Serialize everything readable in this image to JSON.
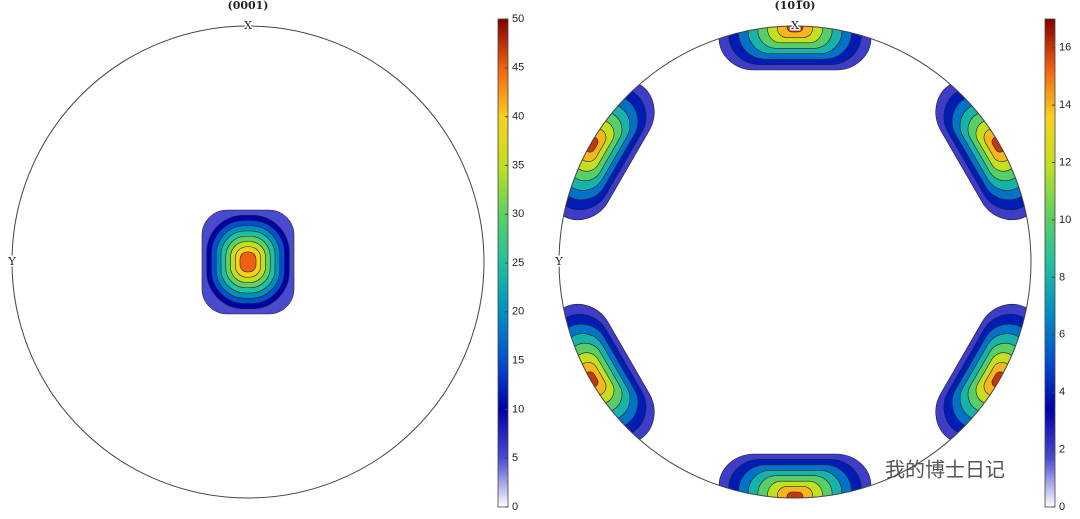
{
  "chart_data": [
    {
      "type": "pole-figure",
      "title": "(0001)",
      "x_label": "X",
      "y_label": "Y",
      "clim": [
        0,
        50
      ],
      "cticks": [
        0,
        5,
        10,
        15,
        20,
        25,
        30,
        35,
        40,
        45,
        50
      ],
      "levels": [
        5,
        10,
        15,
        20,
        25,
        30,
        35,
        40,
        45
      ],
      "colormap": [
        "#ffffff",
        "#4a4ad0",
        "#0000a8",
        "#0050d0",
        "#0090c0",
        "#20c0a0",
        "#60d060",
        "#c0e020",
        "#f8d020",
        "#f06010",
        "#800000"
      ]
    },
    {
      "type": "pole-figure",
      "title": "(101̅0)",
      "x_label": "X",
      "y_label": "Y",
      "clim": [
        0,
        17
      ],
      "cticks": [
        0,
        2,
        4,
        6,
        8,
        10,
        12,
        14,
        16
      ],
      "levels": [
        2,
        4,
        6,
        8,
        10,
        12,
        14,
        16
      ],
      "colormap": [
        "#ffffff",
        "#4a4ad0",
        "#0000a8",
        "#0050d0",
        "#0090c0",
        "#20c0a0",
        "#60d060",
        "#c0e020",
        "#f8d020",
        "#f06010",
        "#800000"
      ]
    }
  ],
  "watermark": "我的博士日记"
}
